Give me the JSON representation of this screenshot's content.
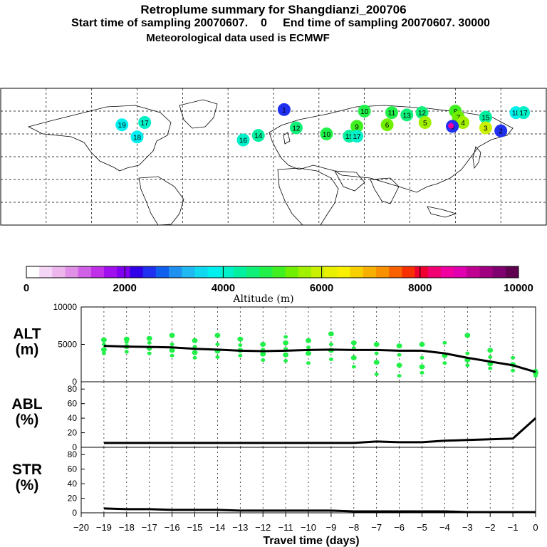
{
  "header": {
    "title": "Retroplume summary for Shangdianzi_200706",
    "sampling": "Start time of sampling 20070607.    0     End time of sampling 20070607. 30000",
    "met": "Meteorological data used is ECMWF"
  },
  "colorbar": {
    "ticks": [
      "0",
      "2000",
      "4000",
      "6000",
      "8000",
      "10000"
    ],
    "label": "Altitude (m)",
    "colors": [
      "#ffffff",
      "#f5d5f5",
      "#ecb5ec",
      "#e090e6",
      "#d060e6",
      "#c030e8",
      "#a010ee",
      "#8000f0",
      "#3000e8",
      "#2030f0",
      "#1060f0",
      "#2090f0",
      "#20b8f0",
      "#10d8f0",
      "#00f0f0",
      "#00f0c8",
      "#00f0a0",
      "#10f078",
      "#20f048",
      "#40f020",
      "#70f000",
      "#a0f000",
      "#c8f000",
      "#e8f000",
      "#f8f000",
      "#f8d000",
      "#f8b000",
      "#f89000",
      "#f86000",
      "#f83000",
      "#f00030",
      "#f00070",
      "#f000a0",
      "#e000b0",
      "#c00090",
      "#a00080",
      "#800070",
      "#600050"
    ]
  },
  "map": {
    "labels": [
      {
        "t": "1",
        "lon": 7,
        "lat": 62
      },
      {
        "t": "18",
        "lon": 160,
        "lat": 58
      },
      {
        "t": "17",
        "lon": 165,
        "lat": 58
      },
      {
        "t": "15",
        "lon": 140,
        "lat": 52
      },
      {
        "t": "8",
        "lon": 120,
        "lat": 60
      },
      {
        "t": "7",
        "lon": 122,
        "lat": 52
      },
      {
        "t": "13",
        "lon": 88,
        "lat": 55
      },
      {
        "t": "12",
        "lon": 98,
        "lat": 58
      },
      {
        "t": "11",
        "lon": 78,
        "lat": 58
      },
      {
        "t": "10",
        "lon": 60,
        "lat": 60
      },
      {
        "t": "9",
        "lon": 55,
        "lat": 40
      },
      {
        "t": "5",
        "lon": 100,
        "lat": 45
      },
      {
        "t": "6",
        "lon": 75,
        "lat": 42
      },
      {
        "t": "18",
        "lon": -90,
        "lat": 26
      },
      {
        "t": "19",
        "lon": -100,
        "lat": 42
      },
      {
        "t": "17",
        "lon": -85,
        "lat": 45
      },
      {
        "t": "14",
        "lon": -10,
        "lat": 28
      },
      {
        "t": "16",
        "lon": -20,
        "lat": 22
      },
      {
        "t": "12",
        "lon": 15,
        "lat": 38
      },
      {
        "t": "10",
        "lon": 35,
        "lat": 30
      },
      {
        "t": "15",
        "lon": 50,
        "lat": 27
      },
      {
        "t": "17",
        "lon": 55,
        "lat": 27
      },
      {
        "t": "4",
        "lon": 125,
        "lat": 45
      },
      {
        "t": "3",
        "lon": 140,
        "lat": 38
      },
      {
        "t": "2",
        "lon": 150,
        "lat": 34
      },
      {
        "t": "1",
        "lon": 118,
        "lat": 40
      },
      {
        "t": "0",
        "lon": 118,
        "lat": 40
      }
    ]
  },
  "chart_data": [
    {
      "type": "line",
      "panel": "ALT",
      "ylabel": "ALT\n(m)",
      "ylabel_lines": [
        "ALT",
        "(m)"
      ],
      "ylim": [
        0,
        10000
      ],
      "yticks": [
        "10000",
        "5000",
        "0"
      ],
      "x": [
        -19,
        -18,
        -17,
        -16,
        -15,
        -14,
        -13,
        -12,
        -11,
        -10,
        -9,
        -8,
        -7,
        -6,
        -5,
        -4,
        -3,
        -2,
        -1,
        0
      ],
      "values": [
        4800,
        4700,
        4650,
        4600,
        4400,
        4300,
        4150,
        4100,
        4150,
        4250,
        4300,
        4250,
        4250,
        4150,
        4150,
        3800,
        3200,
        2700,
        2200,
        1300
      ],
      "scatter": [
        {
          "x": -19,
          "ys": [
            3800,
            4300,
            5000,
            5600
          ]
        },
        {
          "x": -18,
          "ys": [
            4000,
            4700,
            5300,
            5700
          ]
        },
        {
          "x": -17,
          "ys": [
            3800,
            4500,
            5200,
            5800
          ]
        },
        {
          "x": -16,
          "ys": [
            3500,
            4200,
            5000,
            6200
          ]
        },
        {
          "x": -15,
          "ys": [
            3200,
            3900,
            4700,
            5500
          ]
        },
        {
          "x": -14,
          "ys": [
            3300,
            4100,
            5000,
            6200
          ]
        },
        {
          "x": -13,
          "ys": [
            3500,
            4200,
            4900,
            5700
          ]
        },
        {
          "x": -12,
          "ys": [
            2900,
            3700,
            4300,
            5000
          ]
        },
        {
          "x": -11,
          "ys": [
            2800,
            3600,
            4400,
            5200,
            6000
          ]
        },
        {
          "x": -10,
          "ys": [
            2500,
            3800,
            4600,
            5500
          ]
        },
        {
          "x": -9,
          "ys": [
            3000,
            4200,
            5000,
            6400
          ]
        },
        {
          "x": -8,
          "ys": [
            2000,
            3200,
            4500,
            5200
          ]
        },
        {
          "x": -7,
          "ys": [
            1000,
            2600,
            3800,
            5000
          ]
        },
        {
          "x": -6,
          "ys": [
            800,
            2200,
            3600,
            4800
          ]
        },
        {
          "x": -5,
          "ys": [
            1200,
            2000,
            3200,
            5000
          ]
        },
        {
          "x": -4,
          "ys": [
            2500,
            3500,
            5200
          ]
        },
        {
          "x": -3,
          "ys": [
            2200,
            2900,
            3800,
            6200
          ]
        },
        {
          "x": -2,
          "ys": [
            1800,
            2400,
            3300,
            4200
          ]
        },
        {
          "x": -1,
          "ys": [
            1500,
            2300,
            3200
          ]
        },
        {
          "x": 0,
          "ys": [
            800,
            1200,
            1500
          ]
        }
      ]
    },
    {
      "type": "line",
      "panel": "ABL",
      "ylabel": "ABL\n(%)",
      "ylabel_lines": [
        "ABL",
        "(%)"
      ],
      "ylim": [
        0,
        90
      ],
      "yticks": [
        "80",
        "60",
        "40",
        "20",
        "0"
      ],
      "x": [
        -19,
        -18,
        -17,
        -16,
        -15,
        -14,
        -13,
        -12,
        -11,
        -10,
        -9,
        -8,
        -7,
        -6,
        -5,
        -4,
        -3,
        -2,
        -1,
        0
      ],
      "values": [
        6,
        6,
        6,
        6,
        6,
        6,
        6,
        6,
        6,
        6,
        6,
        6,
        8,
        7,
        7,
        9,
        10,
        11,
        12,
        40
      ]
    },
    {
      "type": "line",
      "panel": "STR",
      "ylabel": "STR\n(%)",
      "ylabel_lines": [
        "STR",
        "(%)"
      ],
      "ylim": [
        0,
        90
      ],
      "yticks": [
        "80",
        "60",
        "40",
        "20",
        "0"
      ],
      "x": [
        -19,
        -18,
        -17,
        -16,
        -15,
        -14,
        -13,
        -12,
        -11,
        -10,
        -9,
        -8,
        -7,
        -6,
        -5,
        -4,
        -3,
        -2,
        -1,
        0
      ],
      "values": [
        6,
        5,
        5,
        4,
        4,
        4,
        3,
        3,
        3,
        3,
        3,
        2,
        2,
        2,
        2,
        2,
        1,
        1,
        1,
        1
      ]
    }
  ],
  "xaxis": {
    "ticks": [
      "−20",
      "−19",
      "−18",
      "−17",
      "−16",
      "−15",
      "−14",
      "−13",
      "−12",
      "−11",
      "−10",
      "−9",
      "−8",
      "−7",
      "−6",
      "−5",
      "−4",
      "−3",
      "−2",
      "−1",
      "0"
    ],
    "label": "Travel time (days)"
  }
}
